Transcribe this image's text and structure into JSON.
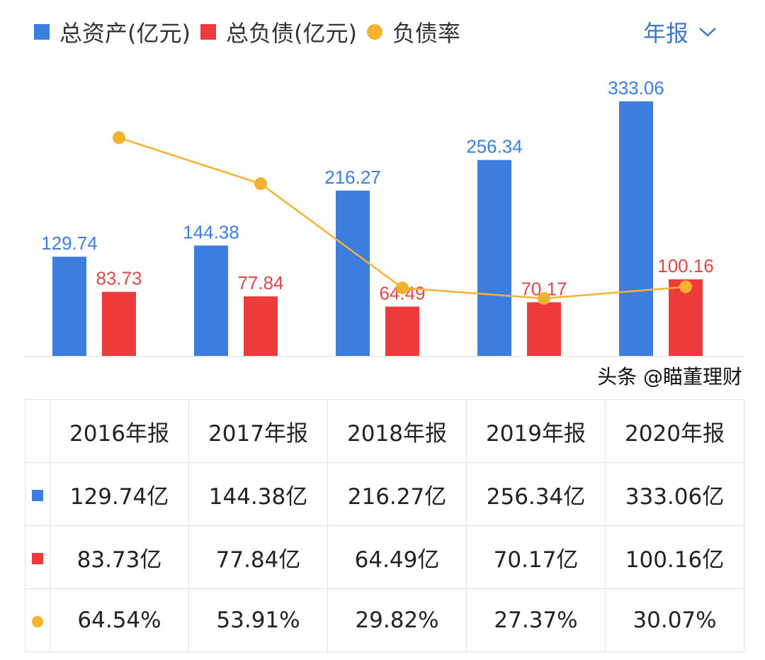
{
  "legend": {
    "assets": "总资产(亿元)",
    "liabilities": "总负债(亿元)",
    "ratio": "负债率"
  },
  "period_select": {
    "label": "年报"
  },
  "colors": {
    "assets": "#3b7ee0",
    "liabilities": "#ee3a3a",
    "ratio": "#f5b22f"
  },
  "chart_data": {
    "type": "bar",
    "categories": [
      "2016年报",
      "2017年报",
      "2018年报",
      "2019年报",
      "2020年报"
    ],
    "series": [
      {
        "name": "总资产(亿元)",
        "type": "bar",
        "values": [
          129.74,
          144.38,
          216.27,
          256.34,
          333.06
        ],
        "labels": [
          "129.74",
          "144.38",
          "216.27",
          "256.34",
          "333.06"
        ]
      },
      {
        "name": "总负债(亿元)",
        "type": "bar",
        "values": [
          83.73,
          77.84,
          64.49,
          70.17,
          100.16
        ],
        "labels": [
          "83.73",
          "77.84",
          "64.49",
          "70.17",
          "100.16"
        ]
      },
      {
        "name": "负债率",
        "type": "line",
        "values": [
          64.54,
          53.91,
          29.82,
          27.37,
          30.07
        ]
      }
    ],
    "grid": false,
    "legend": "top-left"
  },
  "table": {
    "headers": [
      "2016年报",
      "2017年报",
      "2018年报",
      "2019年报",
      "2020年报"
    ],
    "rows": [
      [
        "129.74亿",
        "144.38亿",
        "216.27亿",
        "256.34亿",
        "333.06亿"
      ],
      [
        "83.73亿",
        "77.84亿",
        "64.49亿",
        "70.17亿",
        "100.16亿"
      ],
      [
        "64.54%",
        "53.91%",
        "29.82%",
        "27.37%",
        "30.07%"
      ]
    ]
  },
  "watermark": "头条 @瞄董理财"
}
